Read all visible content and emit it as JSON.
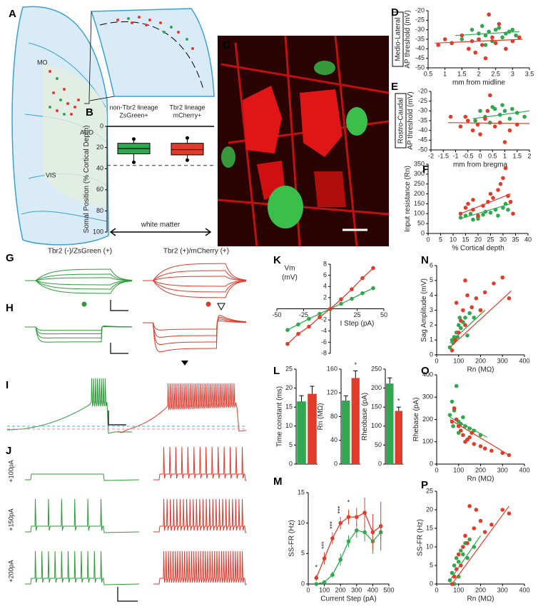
{
  "panels": {
    "letters": [
      "A",
      "B",
      "C",
      "D",
      "E",
      "F",
      "G",
      "H",
      "I",
      "J",
      "K",
      "L",
      "M",
      "N",
      "O",
      "P"
    ],
    "brain_regions": [
      "MO",
      "AUD",
      "VIS"
    ],
    "trace_titles": [
      "Tbr2 (-)/ZsGreen (+)",
      "Tbr2 (+)/mCherry (+)"
    ],
    "steps": [
      "+100pA",
      "+150pA",
      "+200pA"
    ]
  },
  "chart_data": [
    {
      "type": "scatter",
      "side_label": "Medio-Lateral",
      "ylabel": "AP threshold (mV)",
      "xlabel": "mm from midline",
      "xlim": [
        0.5,
        3.5
      ],
      "xticks": [
        0.5,
        1,
        1.5,
        2,
        2.5,
        3,
        3.5
      ],
      "ylim": [
        -50,
        -20
      ],
      "yticks": [
        -50,
        -45,
        -40,
        -35,
        -30,
        -25,
        -20
      ],
      "series": [
        {
          "color": "#2fa84f",
          "x": [
            1.5,
            1.8,
            2,
            2.1,
            2.2,
            2.3,
            2.4,
            2.5,
            2.6,
            2.7,
            2.8,
            2.9,
            3,
            3.1,
            2.2
          ],
          "values": [
            -35,
            -30,
            -32,
            -28,
            -33,
            -31,
            -36,
            -30,
            -29,
            -34,
            -32,
            -31,
            -30,
            -33,
            -38
          ],
          "fit": [
            [
              1.3,
              -33
            ],
            [
              3.2,
              -31
            ]
          ]
        },
        {
          "color": "#e33b2a",
          "x": [
            0.8,
            1,
            1.2,
            1.5,
            1.7,
            1.8,
            1.9,
            2,
            2.1,
            2.2,
            2.3,
            2.4,
            2.5,
            2.6,
            2.8,
            3,
            3.2
          ],
          "values": [
            -38,
            -35,
            -37,
            -33,
            -40,
            -36,
            -42,
            -35,
            -38,
            -45,
            -22,
            -34,
            -37,
            -27,
            -40,
            -36,
            -34
          ],
          "fit": [
            [
              0.7,
              -37
            ],
            [
              3.3,
              -35
            ]
          ]
        }
      ]
    },
    {
      "type": "scatter",
      "side_label": "Rostro-Caudal",
      "ylabel": "AP threshold (mV)",
      "xlabel": "mm from bregma",
      "xlim": [
        -2,
        2
      ],
      "xticks": [
        -2,
        -1.5,
        -1,
        -0.5,
        0,
        0.5,
        1,
        1.5,
        2
      ],
      "ylim": [
        -50,
        -20
      ],
      "yticks": [
        -50,
        -45,
        -40,
        -35,
        -30,
        -25,
        -20
      ],
      "series": [
        {
          "color": "#2fa84f",
          "x": [
            0,
            0.2,
            0.5,
            0.8,
            1,
            1.2,
            1.5,
            0.4,
            0.6,
            1.8,
            0.9,
            -0.2,
            1.3
          ],
          "values": [
            -30,
            -33,
            -28,
            -32,
            -30,
            -34,
            -31,
            -36,
            -29,
            -33,
            -27,
            -35,
            -29
          ],
          "fit": [
            [
              -0.3,
              -34
            ],
            [
              2,
              -30
            ]
          ]
        },
        {
          "color": "#e33b2a",
          "x": [
            -1.2,
            -0.8,
            -0.5,
            -0.3,
            -0.1,
            0,
            0.2,
            0.4,
            0.6,
            0.8,
            1,
            1.2,
            1.5,
            0.3,
            -0.6
          ],
          "values": [
            -33,
            -38,
            -35,
            -40,
            -37,
            -42,
            -34,
            -22,
            -38,
            -36,
            -46,
            -40,
            -37,
            -30,
            -33
          ],
          "fit": [
            [
              -1.3,
              -36
            ],
            [
              2,
              -36.5
            ]
          ]
        }
      ]
    },
    {
      "type": "scatter",
      "ylabel": "Input resistance (Rn)",
      "xlabel": "% Cortical depth",
      "xlim": [
        0,
        40
      ],
      "xticks": [
        0,
        5,
        10,
        15,
        20,
        25,
        30,
        35,
        40
      ],
      "ylim": [
        0,
        350
      ],
      "yticks": [
        0,
        50,
        100,
        150,
        200,
        250,
        300,
        350
      ],
      "series": [
        {
          "color": "#2fa84f",
          "x": [
            13,
            15,
            17,
            18,
            20,
            22,
            23,
            25,
            27,
            28,
            30,
            31,
            32,
            20
          ],
          "values": [
            80,
            90,
            100,
            70,
            85,
            95,
            110,
            105,
            120,
            90,
            130,
            150,
            120,
            75
          ],
          "fit": [
            [
              13,
              75
            ],
            [
              33,
              150
            ]
          ]
        },
        {
          "color": "#e33b2a",
          "x": [
            13,
            15,
            16,
            18,
            20,
            22,
            24,
            25,
            26,
            28,
            29,
            30,
            31,
            32,
            33,
            34,
            18
          ],
          "values": [
            100,
            130,
            150,
            120,
            90,
            140,
            160,
            200,
            180,
            220,
            250,
            280,
            330,
            190,
            160,
            100,
            170
          ],
          "fit": [
            [
              13,
              100
            ],
            [
              33,
              200
            ]
          ]
        }
      ]
    },
    {
      "type": "line",
      "axes": "cross",
      "ylabel": [
        "Vm",
        "(mV)"
      ],
      "xlabel": "I Step (pA)",
      "xlim": [
        -50,
        50
      ],
      "xticks": [
        -50,
        -25,
        25,
        50
      ],
      "ylim": [
        -8,
        8
      ],
      "yticks": [
        -8,
        -6,
        -4,
        -2,
        2,
        4,
        6,
        8
      ],
      "series": [
        {
          "color": "#2fa84f",
          "x": [
            -40,
            -30,
            -20,
            -10,
            0,
            10,
            20,
            30,
            40
          ],
          "values": [
            -3.8,
            -2.8,
            -1.8,
            -0.9,
            0,
            0.9,
            1.8,
            2.8,
            3.7
          ]
        },
        {
          "color": "#e33b2a",
          "x": [
            -40,
            -30,
            -20,
            -10,
            0,
            10,
            20,
            30,
            40
          ],
          "values": [
            -6.3,
            -4.5,
            -3.2,
            -1.5,
            0,
            1.7,
            3.5,
            5.5,
            7.3
          ]
        }
      ]
    },
    {
      "type": "bar",
      "ylabel": "Time constant (ms)",
      "ylim": [
        0,
        25
      ],
      "yticks": [
        0,
        5,
        10,
        15,
        20,
        25
      ],
      "values": [
        16.5,
        18.5
      ],
      "errors": [
        1.5,
        2
      ],
      "colors": [
        "#2fa84f",
        "#e33b2a"
      ]
    },
    {
      "type": "bar",
      "ylabel": "Rn (MΩ)",
      "ylim": [
        0,
        160
      ],
      "yticks": [
        0,
        40,
        80,
        120,
        160
      ],
      "values": [
        107,
        145
      ],
      "errors": [
        8,
        12
      ],
      "colors": [
        "#2fa84f",
        "#e33b2a"
      ],
      "annotations": [
        {
          "index": 1,
          "text": "*"
        }
      ]
    },
    {
      "type": "bar",
      "ylabel": "Rheobase (pA)",
      "ylim": [
        0,
        250
      ],
      "yticks": [
        0,
        50,
        100,
        150,
        200,
        250
      ],
      "values": [
        212,
        140
      ],
      "errors": [
        15,
        10
      ],
      "colors": [
        "#2fa84f",
        "#e33b2a"
      ],
      "annotations": [
        {
          "index": 1,
          "text": "*"
        }
      ]
    },
    {
      "type": "line",
      "ylabel": "SS-FR (Hz)",
      "xlabel": "Current Step (pA)",
      "xlim": [
        0,
        500
      ],
      "xticks": [
        0,
        100,
        200,
        300,
        400,
        500
      ],
      "ylim": [
        0,
        15
      ],
      "yticks": [
        0,
        5,
        10,
        15
      ],
      "series": [
        {
          "color": "#2fa84f",
          "x": [
            50,
            100,
            150,
            200,
            250,
            300,
            350,
            400,
            450
          ],
          "values": [
            0,
            0.3,
            1.5,
            4,
            7,
            8.8,
            8.5,
            7,
            8.5
          ],
          "errors": [
            0,
            0.3,
            0.5,
            1,
            1,
            1.2,
            1.5,
            2,
            1.5
          ]
        },
        {
          "color": "#e33b2a",
          "x": [
            50,
            100,
            150,
            200,
            250,
            300,
            350,
            400,
            450
          ],
          "values": [
            1,
            4.2,
            7.5,
            10,
            11,
            11,
            11.7,
            8.5,
            9.5
          ],
          "errors": [
            0.5,
            1,
            1,
            1,
            1.2,
            1.5,
            2.5,
            3,
            4
          ]
        }
      ],
      "annotations": [
        {
          "x": 50,
          "text": "*"
        },
        {
          "x": 100,
          "text": "***"
        },
        {
          "x": 150,
          "text": "***"
        },
        {
          "x": 200,
          "text": "***"
        },
        {
          "x": 250,
          "text": "*"
        }
      ]
    },
    {
      "type": "scatter",
      "ylabel": "Sag Amplitude (mV)",
      "xlabel": "Rn (MΩ)",
      "xlim": [
        0,
        400
      ],
      "xticks": [
        0,
        100,
        200,
        300,
        400
      ],
      "ylim": [
        0,
        6
      ],
      "yticks": [
        0,
        1,
        2,
        3,
        4,
        5,
        6
      ],
      "series": [
        {
          "color": "#2fa84f",
          "x": [
            60,
            70,
            80,
            90,
            100,
            110,
            120,
            130,
            140,
            150,
            170,
            200,
            75,
            95,
            105
          ],
          "values": [
            0.5,
            1,
            1.2,
            1.5,
            2,
            1.8,
            2.2,
            2.5,
            1.3,
            2.8,
            2.5,
            3,
            0.8,
            1.2,
            2.5
          ],
          "fit": [
            [
              60,
              0.8
            ],
            [
              220,
              3
            ]
          ]
        },
        {
          "color": "#e33b2a",
          "x": [
            70,
            85,
            100,
            110,
            120,
            130,
            140,
            160,
            180,
            200,
            220,
            260,
            300,
            330,
            130,
            90
          ],
          "values": [
            0.3,
            1,
            1.5,
            2.3,
            3,
            2,
            4,
            3.2,
            3.8,
            3,
            4.2,
            4.8,
            5.2,
            3.8,
            5,
            3.5
          ],
          "fit": [
            [
              60,
              0.5
            ],
            [
              340,
              4.3
            ]
          ]
        }
      ]
    },
    {
      "type": "scatter",
      "ylabel": "Rhebase (pA)",
      "xlabel": "Rn (MΩ)",
      "xlim": [
        0,
        400
      ],
      "xticks": [
        0,
        100,
        200,
        300,
        400
      ],
      "ylim": [
        0,
        400
      ],
      "yticks": [
        0,
        100,
        200,
        300,
        400
      ],
      "series": [
        {
          "color": "#2fa84f",
          "x": [
            60,
            70,
            80,
            90,
            100,
            110,
            120,
            130,
            150,
            170,
            200,
            90,
            100,
            75
          ],
          "values": [
            220,
            280,
            240,
            200,
            190,
            180,
            210,
            170,
            160,
            150,
            130,
            350,
            140,
            170
          ],
          "fit": [
            [
              60,
              210
            ],
            [
              230,
              120
            ]
          ]
        },
        {
          "color": "#e33b2a",
          "x": [
            70,
            80,
            90,
            100,
            110,
            120,
            140,
            150,
            170,
            200,
            220,
            250,
            300,
            330,
            130,
            160
          ],
          "values": [
            190,
            250,
            200,
            170,
            150,
            130,
            110,
            120,
            90,
            80,
            70,
            60,
            50,
            40,
            100,
            140
          ],
          "fit": [
            [
              60,
              200
            ],
            [
              330,
              40
            ]
          ]
        }
      ]
    },
    {
      "type": "scatter",
      "ylabel": "SS-FR (Hz)",
      "xlabel": "Rn (MΩ)",
      "xlim": [
        0,
        400
      ],
      "xticks": [
        0,
        100,
        200,
        300,
        400
      ],
      "ylim": [
        0,
        25
      ],
      "yticks": [
        0,
        5,
        10,
        15,
        20,
        25
      ],
      "series": [
        {
          "color": "#2fa84f",
          "x": [
            60,
            70,
            80,
            90,
            100,
            110,
            120,
            130,
            150,
            170,
            80,
            100,
            140
          ],
          "values": [
            1,
            3,
            5,
            7,
            6,
            9,
            8,
            11,
            12,
            10,
            0,
            2,
            7
          ],
          "fit": [
            [
              60,
              1
            ],
            [
              200,
              13
            ]
          ]
        },
        {
          "color": "#e33b2a",
          "x": [
            70,
            80,
            90,
            100,
            110,
            120,
            130,
            140,
            150,
            170,
            200,
            220,
            250,
            300,
            330,
            180
          ],
          "values": [
            0,
            2,
            4,
            8,
            5,
            10,
            13,
            11,
            21,
            15,
            17,
            14,
            16,
            20,
            19,
            20
          ],
          "fit": [
            [
              70,
              0
            ],
            [
              330,
              21
            ]
          ]
        }
      ]
    },
    {
      "type": "box",
      "ylabel": "Somal Position (% Cortical Depth)",
      "xlabel": "white matter",
      "ylim": [
        100,
        0
      ],
      "yticks": [
        0,
        20,
        40,
        60,
        80,
        100
      ],
      "reference_line": 37,
      "boxes": [
        {
          "label": [
            "non-Tbr2 lineage",
            "ZsGreen+"
          ],
          "color": "#2fa84f",
          "whisker_low": 12,
          "q1": 16,
          "median": 21,
          "q3": 26,
          "whisker_high": 34
        },
        {
          "label": [
            "Tbr2 lineage",
            "mCherry+"
          ],
          "color": "#e33b2a",
          "whisker_low": 11,
          "q1": 16,
          "median": 22,
          "q3": 27,
          "whisker_high": 32
        }
      ]
    }
  ]
}
